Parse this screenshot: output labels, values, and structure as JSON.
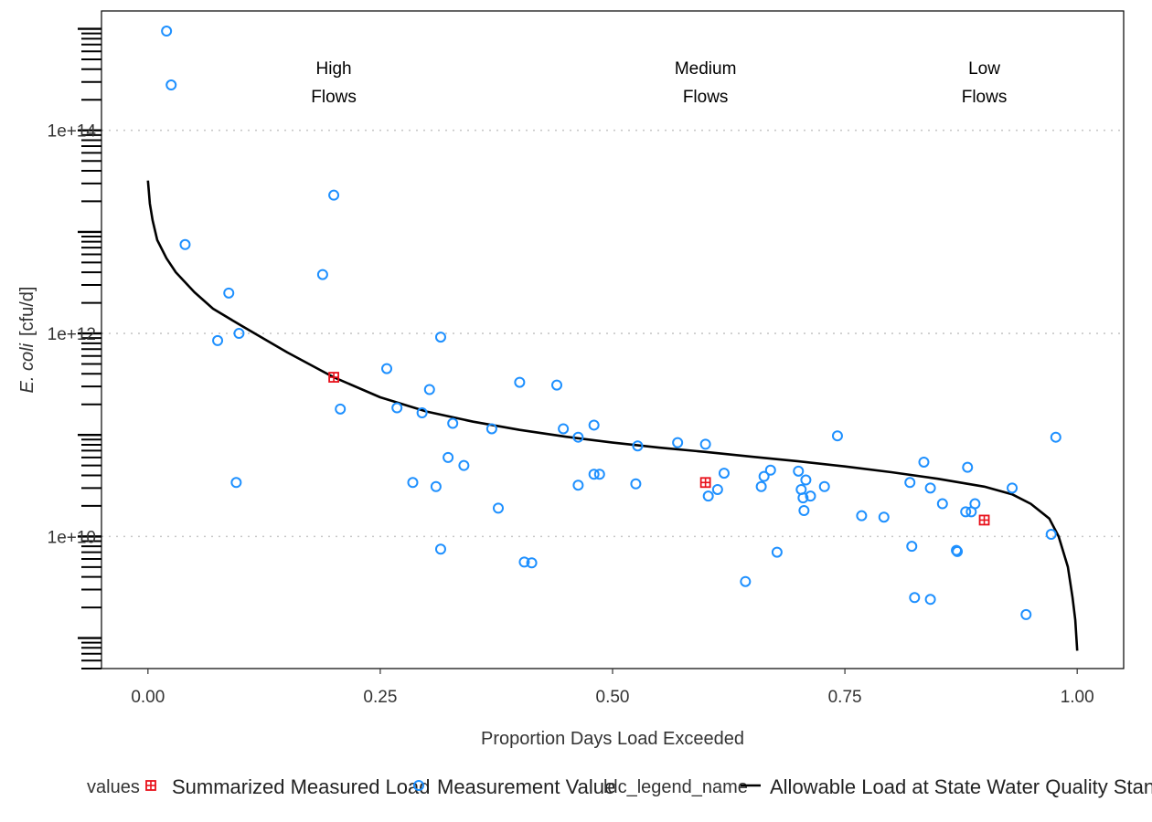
{
  "chart_data": {
    "type": "scatter",
    "xlabel": "Proportion Days Load Exceeded",
    "ylabel_italic": "E. coli",
    "ylabel_unit": "[cfu/d]",
    "x_log": false,
    "y_log": true,
    "xlim": [
      -0.05,
      1.05
    ],
    "ylim": [
      500000000.0,
      1500000000000000.0
    ],
    "x_ticks": [
      {
        "value": 0.0,
        "label": "0.00"
      },
      {
        "value": 0.25,
        "label": "0.25"
      },
      {
        "value": 0.5,
        "label": "0.50"
      },
      {
        "value": 0.75,
        "label": "0.75"
      },
      {
        "value": 1.0,
        "label": "1.00"
      }
    ],
    "y_ticks": [
      {
        "value": 10000000000.0,
        "label": "1e+10"
      },
      {
        "value": 1000000000000.0,
        "label": "1e+12"
      },
      {
        "value": 100000000000000.0,
        "label": "1e+14"
      }
    ],
    "grid": "horizontal-dotted",
    "regions": [
      {
        "x": 0.2,
        "lines": [
          "High",
          "Flows"
        ]
      },
      {
        "x": 0.6,
        "lines": [
          "Medium",
          "Flows"
        ]
      },
      {
        "x": 0.9,
        "lines": [
          "Low",
          "Flows"
        ]
      }
    ],
    "colors": {
      "measurement": "#1e90ff",
      "summary": "#e8101a",
      "curve": "#000000",
      "grid": "#c8c8c8"
    },
    "legend": {
      "position": "bottom",
      "title1": "values",
      "item1": "Summarized Measured Load",
      "item2": "Measurement Value",
      "title2": "ldc_legend_name",
      "item3": "Allowable Load at State Water Quality Standard"
    },
    "series": [
      {
        "name": "Allowable Load at State Water Quality Standard",
        "kind": "line",
        "points": [
          [
            0.0,
            32000000000000.0
          ],
          [
            0.002,
            19000000000000.0
          ],
          [
            0.005,
            13000000000000.0
          ],
          [
            0.01,
            8300000000000.0
          ],
          [
            0.02,
            5500000000000.0
          ],
          [
            0.03,
            4000000000000.0
          ],
          [
            0.05,
            2550000000000.0
          ],
          [
            0.07,
            1750000000000.0
          ],
          [
            0.1,
            1200000000000.0
          ],
          [
            0.15,
            650000000000.0
          ],
          [
            0.2,
            370000000000.0
          ],
          [
            0.25,
            235000000000.0
          ],
          [
            0.3,
            170000000000.0
          ],
          [
            0.35,
            135000000000.0
          ],
          [
            0.4,
            112000000000.0
          ],
          [
            0.45,
            96000000000.0
          ],
          [
            0.5,
            84000000000.0
          ],
          [
            0.55,
            75000000000.0
          ],
          [
            0.6,
            68000000000.0
          ],
          [
            0.65,
            61000000000.0
          ],
          [
            0.7,
            55000000000.0
          ],
          [
            0.75,
            49000000000.0
          ],
          [
            0.8,
            43000000000.0
          ],
          [
            0.85,
            37000000000.0
          ],
          [
            0.9,
            31000000000.0
          ],
          [
            0.93,
            26000000000.0
          ],
          [
            0.95,
            21000000000.0
          ],
          [
            0.97,
            15000000000.0
          ],
          [
            0.98,
            10000000000.0
          ],
          [
            0.99,
            5000000000.0
          ],
          [
            0.995,
            2500000000.0
          ],
          [
            0.998,
            1500000000.0
          ],
          [
            1.0,
            750000000.0
          ]
        ]
      },
      {
        "name": "Measurement Value",
        "kind": "point",
        "points": [
          [
            0.02,
            950000000000000.0
          ],
          [
            0.025,
            280000000000000.0
          ],
          [
            0.04,
            7500000000000.0
          ],
          [
            0.087,
            2500000000000.0
          ],
          [
            0.075,
            850000000000.0
          ],
          [
            0.098,
            1000000000000.0
          ],
          [
            0.095,
            34000000000.0
          ],
          [
            0.188,
            3800000000000.0
          ],
          [
            0.2,
            23000000000000.0
          ],
          [
            0.207,
            180000000000.0
          ],
          [
            0.257,
            450000000000.0
          ],
          [
            0.268,
            185000000000.0
          ],
          [
            0.285,
            34000000000.0
          ],
          [
            0.295,
            165000000000.0
          ],
          [
            0.303,
            280000000000.0
          ],
          [
            0.31,
            31000000000.0
          ],
          [
            0.315,
            920000000000.0
          ],
          [
            0.315,
            7500000000.0
          ],
          [
            0.323,
            60000000000.0
          ],
          [
            0.328,
            130000000000.0
          ],
          [
            0.34,
            50000000000.0
          ],
          [
            0.37,
            115000000000.0
          ],
          [
            0.377,
            19000000000.0
          ],
          [
            0.4,
            330000000000.0
          ],
          [
            0.405,
            5600000000.0
          ],
          [
            0.413,
            5500000000.0
          ],
          [
            0.44,
            310000000000.0
          ],
          [
            0.447,
            115000000000.0
          ],
          [
            0.463,
            32000000000.0
          ],
          [
            0.463,
            95000000000.0
          ],
          [
            0.48,
            125000000000.0
          ],
          [
            0.48,
            41000000000.0
          ],
          [
            0.486,
            41000000000.0
          ],
          [
            0.525,
            33000000000.0
          ],
          [
            0.527,
            78000000000.0
          ],
          [
            0.57,
            84000000000.0
          ],
          [
            0.6,
            81000000000.0
          ],
          [
            0.603,
            25000000000.0
          ],
          [
            0.613,
            29000000000.0
          ],
          [
            0.62,
            42000000000.0
          ],
          [
            0.643,
            3600000000.0
          ],
          [
            0.66,
            31000000000.0
          ],
          [
            0.663,
            39000000000.0
          ],
          [
            0.67,
            45000000000.0
          ],
          [
            0.677,
            7000000000.0
          ],
          [
            0.7,
            44000000000.0
          ],
          [
            0.703,
            29000000000.0
          ],
          [
            0.705,
            24000000000.0
          ],
          [
            0.708,
            36000000000.0
          ],
          [
            0.713,
            25000000000.0
          ],
          [
            0.706,
            18000000000.0
          ],
          [
            0.728,
            31000000000.0
          ],
          [
            0.742,
            98000000000.0
          ],
          [
            0.768,
            16000000000.0
          ],
          [
            0.792,
            15500000000.0
          ],
          [
            0.82,
            34000000000.0
          ],
          [
            0.822,
            8000000000.0
          ],
          [
            0.825,
            2500000000.0
          ],
          [
            0.835,
            54000000000.0
          ],
          [
            0.842,
            2400000000.0
          ],
          [
            0.842,
            30000000000.0
          ],
          [
            0.855,
            21000000000.0
          ],
          [
            0.87,
            7300000000.0
          ],
          [
            0.871,
            7100000000.0
          ],
          [
            0.88,
            17500000000.0
          ],
          [
            0.882,
            48000000000.0
          ],
          [
            0.886,
            17500000000.0
          ],
          [
            0.89,
            21000000000.0
          ],
          [
            0.93,
            30000000000.0
          ],
          [
            0.945,
            1700000000.0
          ],
          [
            0.972,
            10500000000.0
          ],
          [
            0.977,
            95000000000.0
          ]
        ]
      },
      {
        "name": "Summarized Measured Load",
        "kind": "point",
        "points": [
          [
            0.2,
            370000000000.0
          ],
          [
            0.6,
            34000000000.0
          ],
          [
            0.9,
            14500000000.0
          ]
        ]
      }
    ]
  }
}
